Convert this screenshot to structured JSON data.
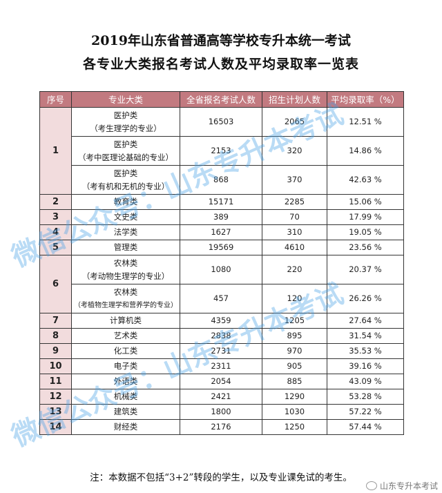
{
  "title_line1": "2019年山东省普通高等学校专升本统一考试",
  "title_line2": "各专业大类报名考试人数及平均录取率一览表",
  "headers": [
    "序号",
    "专业大类",
    "全省报名考试人数",
    "招生计划人数",
    "平均录取率（%）"
  ],
  "rows": [
    {
      "no": "1",
      "major": "医护类",
      "sub": "（考生理学的专业）",
      "applicants": "16503",
      "plan": "2065",
      "rate": "12.51 %"
    },
    {
      "major": "医护类",
      "sub": "（考中医理论基础的专业）",
      "applicants": "2153",
      "plan": "320",
      "rate": "14.86 %"
    },
    {
      "major": "医护类",
      "sub": "（考有机和无机的专业）",
      "applicants": "868",
      "plan": "370",
      "rate": "42.63 %"
    },
    {
      "no": "2",
      "major": "教育类",
      "applicants": "15171",
      "plan": "2285",
      "rate": "15.06 %"
    },
    {
      "no": "3",
      "major": "文史类",
      "applicants": "389",
      "plan": "70",
      "rate": "17.99 %"
    },
    {
      "no": "4",
      "major": "法学类",
      "applicants": "1627",
      "plan": "310",
      "rate": "19.05 %"
    },
    {
      "no": "5",
      "major": "管理类",
      "applicants": "19569",
      "plan": "4610",
      "rate": "23.56 %"
    },
    {
      "no": "6",
      "major": "农林类",
      "sub": "（考动物生理学的专业）",
      "applicants": "1080",
      "plan": "220",
      "rate": "20.37 %"
    },
    {
      "major": "农林类",
      "sub": "（考植物生理学和营养学的专业）",
      "applicants": "457",
      "plan": "120",
      "rate": "26.26 %"
    },
    {
      "no": "7",
      "major": "计算机类",
      "applicants": "4359",
      "plan": "1205",
      "rate": "27.64 %"
    },
    {
      "no": "8",
      "major": "艺术类",
      "applicants": "2838",
      "plan": "895",
      "rate": "31.54 %"
    },
    {
      "no": "9",
      "major": "化工类",
      "applicants": "2731",
      "plan": "970",
      "rate": "35.53 %"
    },
    {
      "no": "10",
      "major": "电子类",
      "applicants": "2311",
      "plan": "905",
      "rate": "39.16 %"
    },
    {
      "no": "11",
      "major": "外语类",
      "applicants": "2054",
      "plan": "885",
      "rate": "43.09 %"
    },
    {
      "no": "12",
      "major": "机械类",
      "applicants": "2421",
      "plan": "1290",
      "rate": "53.28 %"
    },
    {
      "no": "13",
      "major": "建筑类",
      "applicants": "1800",
      "plan": "1030",
      "rate": "57.22 %"
    },
    {
      "no": "14",
      "major": "财经类",
      "applicants": "2176",
      "plan": "1250",
      "rate": "57.44 %"
    }
  ],
  "note": "注：本数据不包括“3+2”转段的学生，以及专业课免试的考生。",
  "watermark": "微信公众号：山东专升本考试",
  "brand": "山东专升本考试",
  "colors": {
    "header_bg": "#c27a80",
    "index_bg": "#f2dcdd",
    "watermark": "#46a0e6"
  }
}
